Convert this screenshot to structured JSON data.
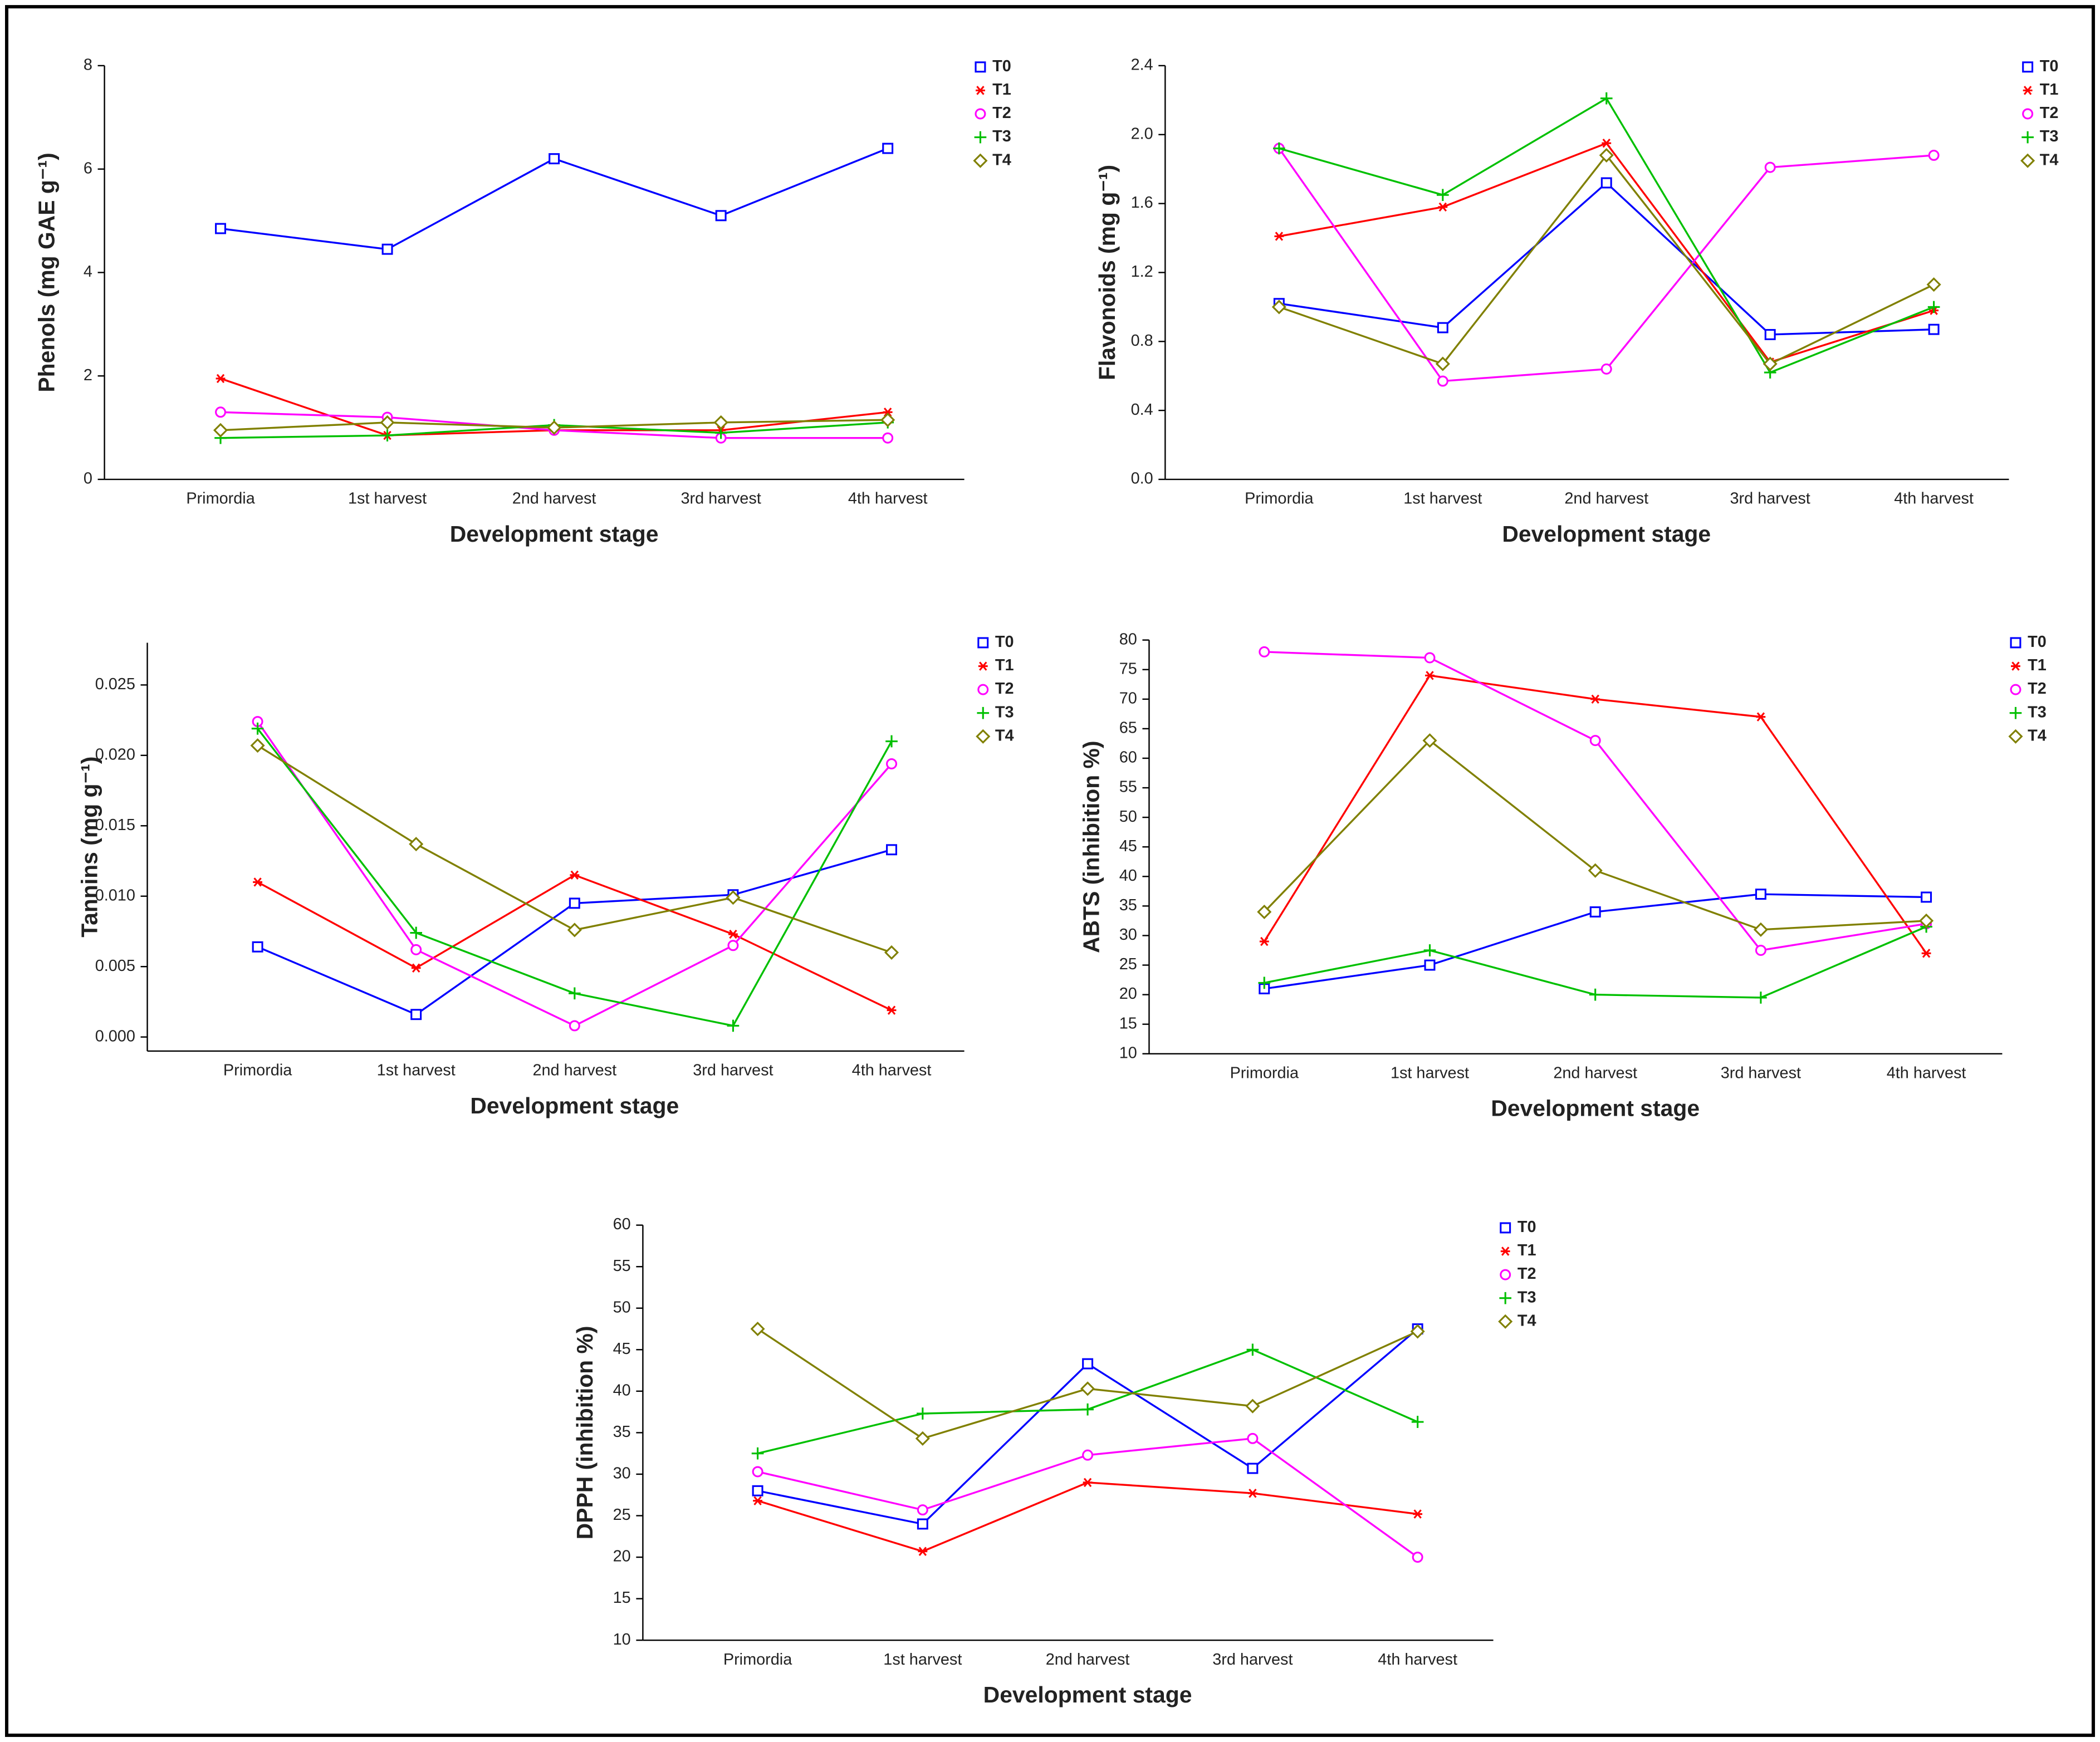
{
  "chart_data": [
    {
      "type": "line",
      "ylabel": "Phenols (mg GAE g⁻¹)",
      "xlabel": "Development stage",
      "categories": [
        "Primordia",
        "1st harvest",
        "2nd harvest",
        "3rd harvest",
        "4th harvest"
      ],
      "ylim": [
        0,
        8
      ],
      "yticks": [
        0,
        2,
        4,
        6,
        8
      ],
      "series": [
        {
          "name": "T0",
          "color": "#0000ff",
          "marker": "square",
          "values": [
            4.85,
            4.45,
            6.2,
            5.1,
            6.4
          ]
        },
        {
          "name": "T1",
          "color": "#ff0000",
          "marker": "asterisk",
          "values": [
            1.95,
            0.85,
            0.95,
            0.95,
            1.3
          ]
        },
        {
          "name": "T2",
          "color": "#ff00ff",
          "marker": "circle",
          "values": [
            1.3,
            1.2,
            0.95,
            0.8,
            0.8
          ]
        },
        {
          "name": "T3",
          "color": "#00c000",
          "marker": "plus",
          "values": [
            0.8,
            0.85,
            1.05,
            0.9,
            1.1
          ]
        },
        {
          "name": "T4",
          "color": "#808000",
          "marker": "diamond",
          "values": [
            0.95,
            1.1,
            1.0,
            1.1,
            1.15
          ]
        }
      ]
    },
    {
      "type": "line",
      "ylabel": "Flavonoids (mg g⁻¹)",
      "xlabel": "Development stage",
      "categories": [
        "Primordia",
        "1st harvest",
        "2nd harvest",
        "3rd harvest",
        "4th harvest"
      ],
      "ylim": [
        0,
        2.4
      ],
      "yticks": [
        {
          "value": 0,
          "label": "0.0"
        },
        0.4,
        0.8,
        1.2,
        1.6,
        {
          "value": 2,
          "label": "2.0"
        },
        2.4
      ],
      "series": [
        {
          "name": "T0",
          "color": "#0000ff",
          "marker": "square",
          "values": [
            1.02,
            0.88,
            1.72,
            0.84,
            0.87
          ]
        },
        {
          "name": "T1",
          "color": "#ff0000",
          "marker": "asterisk",
          "values": [
            1.41,
            1.58,
            1.95,
            0.68,
            0.98
          ]
        },
        {
          "name": "T2",
          "color": "#ff00ff",
          "marker": "circle",
          "values": [
            1.92,
            0.57,
            0.64,
            1.81,
            1.88
          ]
        },
        {
          "name": "T3",
          "color": "#00c000",
          "marker": "plus",
          "values": [
            1.92,
            1.65,
            2.21,
            0.62,
            1.0
          ]
        },
        {
          "name": "T4",
          "color": "#808000",
          "marker": "diamond",
          "values": [
            1.0,
            0.67,
            1.88,
            0.67,
            1.13
          ]
        }
      ]
    },
    {
      "type": "line",
      "ylabel": "Tannins (mg g⁻¹)",
      "xlabel": "Development stage",
      "categories": [
        "Primordia",
        "1st harvest",
        "2nd harvest",
        "3rd harvest",
        "4th harvest"
      ],
      "ylim": [
        -0.001,
        0.028
      ],
      "yticks": [
        {
          "value": 0,
          "label": "0.000"
        },
        0.005,
        {
          "value": 0.01,
          "label": "0.010"
        },
        0.015,
        {
          "value": 0.02,
          "label": "0.020"
        },
        0.025
      ],
      "series": [
        {
          "name": "T0",
          "color": "#0000ff",
          "marker": "square",
          "values": [
            0.0064,
            0.0016,
            0.0095,
            0.0101,
            0.0133
          ]
        },
        {
          "name": "T1",
          "color": "#ff0000",
          "marker": "asterisk",
          "values": [
            0.011,
            0.0049,
            0.0115,
            0.0073,
            0.0019
          ]
        },
        {
          "name": "T2",
          "color": "#ff00ff",
          "marker": "circle",
          "values": [
            0.0224,
            0.0062,
            0.0008,
            0.0065,
            0.0194
          ]
        },
        {
          "name": "T3",
          "color": "#00c000",
          "marker": "plus",
          "values": [
            0.0219,
            0.0074,
            0.0031,
            0.0008,
            0.021
          ]
        },
        {
          "name": "T4",
          "color": "#808000",
          "marker": "diamond",
          "values": [
            0.0207,
            0.0137,
            0.0076,
            0.0099,
            0.006
          ]
        }
      ]
    },
    {
      "type": "line",
      "ylabel": "ABTS (inhibition %)",
      "xlabel": "Development stage",
      "categories": [
        "Primordia",
        "1st harvest",
        "2nd harvest",
        "3rd harvest",
        "4th harvest"
      ],
      "ylim": [
        10,
        80
      ],
      "yticks": [
        10,
        15,
        20,
        25,
        30,
        35,
        40,
        45,
        50,
        55,
        60,
        65,
        70,
        75,
        80
      ],
      "series": [
        {
          "name": "T0",
          "color": "#0000ff",
          "marker": "square",
          "values": [
            21,
            25,
            34,
            37,
            36.5
          ]
        },
        {
          "name": "T1",
          "color": "#ff0000",
          "marker": "asterisk",
          "values": [
            29,
            74,
            70,
            67,
            27
          ]
        },
        {
          "name": "T2",
          "color": "#ff00ff",
          "marker": "circle",
          "values": [
            78,
            77,
            63,
            27.5,
            32
          ]
        },
        {
          "name": "T3",
          "color": "#00c000",
          "marker": "plus",
          "values": [
            22,
            27.5,
            20,
            19.5,
            31.5
          ]
        },
        {
          "name": "T4",
          "color": "#808000",
          "marker": "diamond",
          "values": [
            34,
            63,
            41,
            31,
            32.5
          ]
        }
      ]
    },
    {
      "type": "line",
      "ylabel": "DPPH (inhibition %)",
      "xlabel": "Development stage",
      "categories": [
        "Primordia",
        "1st harvest",
        "2nd harvest",
        "3rd harvest",
        "4th harvest"
      ],
      "ylim": [
        10,
        60
      ],
      "yticks": [
        10,
        15,
        20,
        25,
        30,
        35,
        40,
        45,
        50,
        55,
        60
      ],
      "series": [
        {
          "name": "T0",
          "color": "#0000ff",
          "marker": "square",
          "values": [
            28,
            24,
            43.3,
            30.7,
            47.5
          ]
        },
        {
          "name": "T1",
          "color": "#ff0000",
          "marker": "asterisk",
          "values": [
            26.8,
            20.7,
            29,
            27.7,
            25.2
          ]
        },
        {
          "name": "T2",
          "color": "#ff00ff",
          "marker": "circle",
          "values": [
            30.3,
            25.7,
            32.3,
            34.3,
            20
          ]
        },
        {
          "name": "T3",
          "color": "#00c000",
          "marker": "plus",
          "values": [
            32.5,
            37.3,
            37.8,
            45,
            36.3
          ]
        },
        {
          "name": "T4",
          "color": "#808000",
          "marker": "diamond",
          "values": [
            47.5,
            34.3,
            40.3,
            38.2,
            47.2
          ]
        }
      ]
    }
  ]
}
